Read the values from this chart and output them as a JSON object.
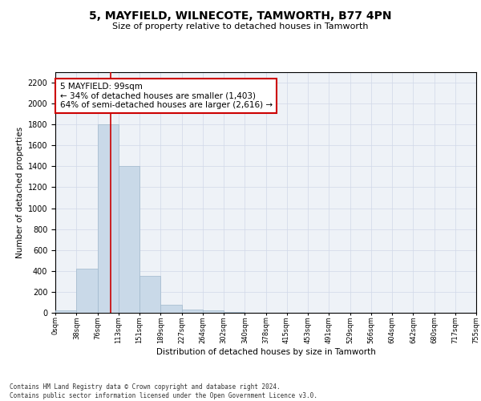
{
  "title": "5, MAYFIELD, WILNECOTE, TAMWORTH, B77 4PN",
  "subtitle": "Size of property relative to detached houses in Tamworth",
  "xlabel": "Distribution of detached houses by size in Tamworth",
  "ylabel": "Number of detached properties",
  "bin_labels": [
    "0sqm",
    "38sqm",
    "76sqm",
    "113sqm",
    "151sqm",
    "189sqm",
    "227sqm",
    "264sqm",
    "302sqm",
    "340sqm",
    "378sqm",
    "415sqm",
    "453sqm",
    "491sqm",
    "529sqm",
    "566sqm",
    "604sqm",
    "642sqm",
    "680sqm",
    "717sqm",
    "755sqm"
  ],
  "bin_edges": [
    0,
    38,
    76,
    113,
    151,
    189,
    227,
    264,
    302,
    340,
    378,
    415,
    453,
    491,
    529,
    566,
    604,
    642,
    680,
    717,
    755
  ],
  "bar_heights": [
    20,
    420,
    1800,
    1400,
    350,
    80,
    30,
    20,
    10,
    0,
    0,
    0,
    0,
    0,
    0,
    0,
    0,
    0,
    0,
    0
  ],
  "bar_color": "#c9d9e8",
  "bar_edge_color": "#a0b8cc",
  "grid_color": "#d0d8e8",
  "bg_color": "#eef2f7",
  "property_size": 99,
  "red_line_color": "#cc0000",
  "annotation_text": "5 MAYFIELD: 99sqm\n← 34% of detached houses are smaller (1,403)\n64% of semi-detached houses are larger (2,616) →",
  "annotation_box_color": "#ffffff",
  "annotation_box_edge": "#cc0000",
  "ylim": [
    0,
    2300
  ],
  "yticks": [
    0,
    200,
    400,
    600,
    800,
    1000,
    1200,
    1400,
    1600,
    1800,
    2000,
    2200
  ],
  "footer_line1": "Contains HM Land Registry data © Crown copyright and database right 2024.",
  "footer_line2": "Contains public sector information licensed under the Open Government Licence v3.0."
}
